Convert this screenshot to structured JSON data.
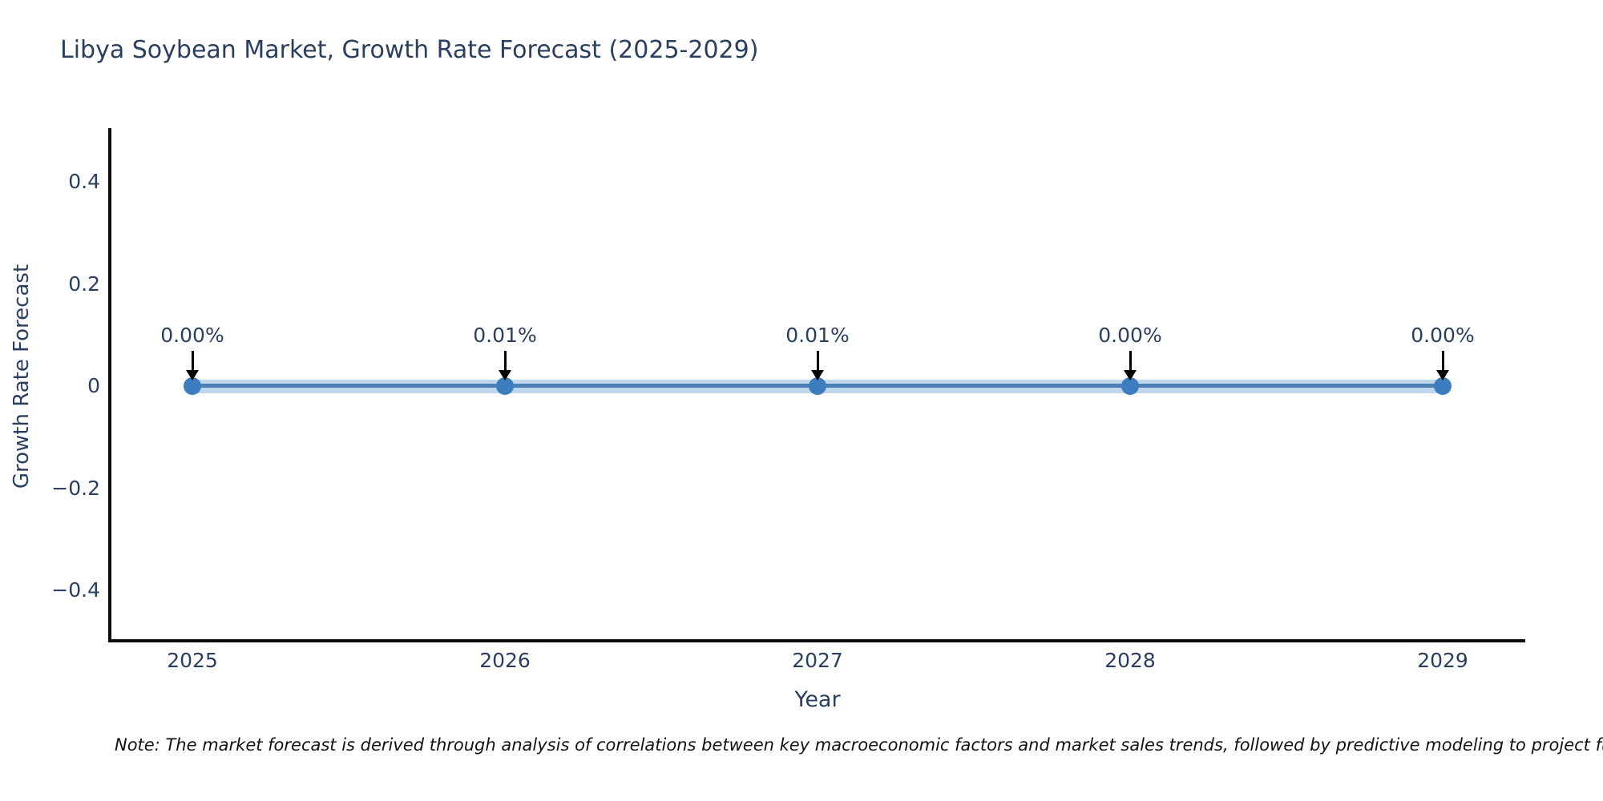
{
  "page": {
    "background": "#ffffff"
  },
  "header": {
    "title": "Libya Soybean Market, Growth Rate Forecast (2025-2029)"
  },
  "footer": {
    "note": "Note: The market forecast is derived through analysis of correlations between key macroeconomic factors and market sales trends, followed by predictive modeling to project future sal"
  },
  "colors": {
    "title_text": "#2a3f5f",
    "tick_text": "#2a3f5f",
    "axis_line": "#0d0d0d",
    "series_line": "#4a80b4",
    "series_halo": "rgba(127,175,218,0.5)",
    "marker_fill": "#3d7cbe",
    "annotation_text": "#2a3f5f",
    "annotation_arrow": "#000000",
    "note_text": "#111111"
  },
  "chart_data": {
    "type": "line",
    "title": "Libya Soybean Market, Growth Rate Forecast (2025-2029)",
    "xlabel": "Year",
    "ylabel": "Growth Rate Forecast",
    "categories": [
      "2025",
      "2026",
      "2027",
      "2028",
      "2029"
    ],
    "series": [
      {
        "name": "Growth Rate Forecast",
        "values_percent": [
          0.0,
          0.01,
          0.01,
          0.0,
          0.0
        ],
        "point_labels": [
          "0.00%",
          "0.01%",
          "0.01%",
          "0.00%",
          "0.00%"
        ]
      }
    ],
    "ylim": [
      -0.5,
      0.505
    ],
    "yticks": [
      {
        "label": "0.4",
        "value": 0.4
      },
      {
        "label": "0.2",
        "value": 0.2
      },
      {
        "label": "0",
        "value": 0
      },
      {
        "label": "−0.2",
        "value": -0.2
      },
      {
        "label": "−0.4",
        "value": -0.4
      }
    ],
    "grid": false,
    "legend": "none",
    "marker_style": "circle",
    "annotations_have_down_arrows": true
  }
}
